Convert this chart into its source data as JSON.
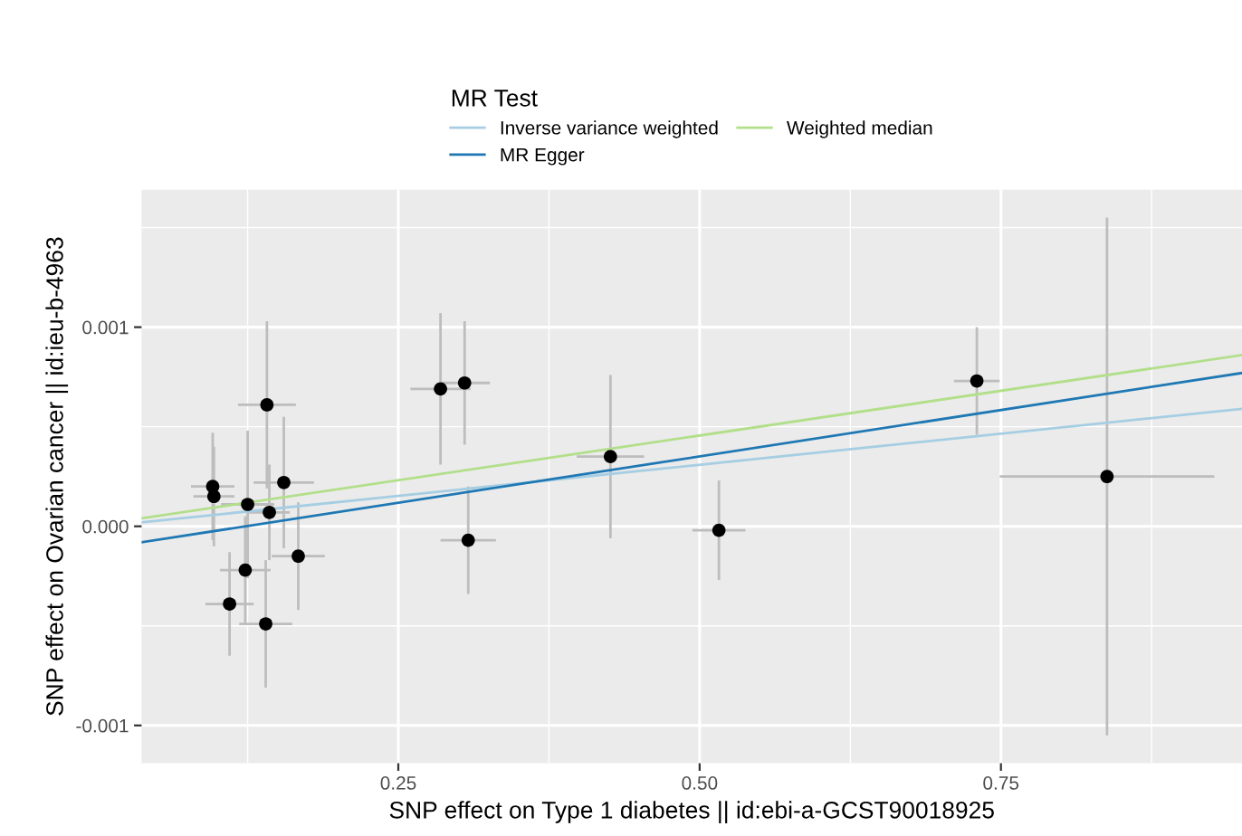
{
  "chart_data": {
    "type": "scatter",
    "xlabel": "SNP effect on Type 1 diabetes || id:ebi-a-GCST90018925",
    "ylabel": "SNP effect on Ovarian cancer || id:ieu-b-4963",
    "legend_title": "MR Test",
    "legend": "top",
    "grid": true,
    "xlim": [
      0.037,
      0.95
    ],
    "ylim": [
      -0.00119,
      0.00169
    ],
    "xticks": [
      {
        "value": 0.25,
        "label": "0.25"
      },
      {
        "value": 0.5,
        "label": "0.50"
      },
      {
        "value": 0.75,
        "label": "0.75"
      }
    ],
    "yticks": [
      {
        "value": -0.001,
        "label": "-0.001"
      },
      {
        "value": 0,
        "label": "0.000"
      },
      {
        "value": 0.001,
        "label": "0.001"
      }
    ],
    "series": [
      {
        "color": "#000000",
        "marker": "circle",
        "x": [
          0.096,
          0.097,
          0.125,
          0.141,
          0.143,
          0.155,
          0.123,
          0.11,
          0.14,
          0.167,
          0.285,
          0.305,
          0.308,
          0.426,
          0.516,
          0.73,
          0.838
        ],
        "values": [
          0.0002,
          0.00015,
          0.00011,
          0.00061,
          7e-05,
          0.00022,
          -0.00022,
          -0.00039,
          -0.00049,
          -0.00015,
          0.00069,
          0.00072,
          -7e-05,
          0.00035,
          -2e-05,
          0.00073,
          0.00025
        ],
        "errors": [
          0.00027,
          0.00025,
          0.00037,
          0.00042,
          0.00024,
          0.00033,
          0.00027,
          0.00026,
          0.00032,
          0.00027,
          0.00038,
          0.00031,
          0.00027,
          0.00041,
          0.00025,
          0.00027,
          0.0013
        ],
        "xerrors": [
          0.018,
          0.017,
          0.022,
          0.024,
          0.017,
          0.025,
          0.021,
          0.02,
          0.022,
          0.022,
          0.025,
          0.021,
          0.023,
          0.028,
          0.022,
          0.019,
          0.089
        ]
      },
      {
        "type": "line",
        "name": "Inverse variance weighted",
        "color": "#a6cee3",
        "x": [
          0.037,
          0.95
        ],
        "values": [
          2e-05,
          0.00059
        ]
      },
      {
        "type": "line",
        "name": "MR Egger",
        "color": "#1f78b4",
        "x": [
          0.037,
          0.95
        ],
        "values": [
          -8e-05,
          0.00077
        ]
      },
      {
        "type": "line",
        "name": "Weighted median",
        "color": "#b2df8a",
        "x": [
          0.037,
          0.95
        ],
        "values": [
          4e-05,
          0.00086
        ]
      }
    ]
  }
}
